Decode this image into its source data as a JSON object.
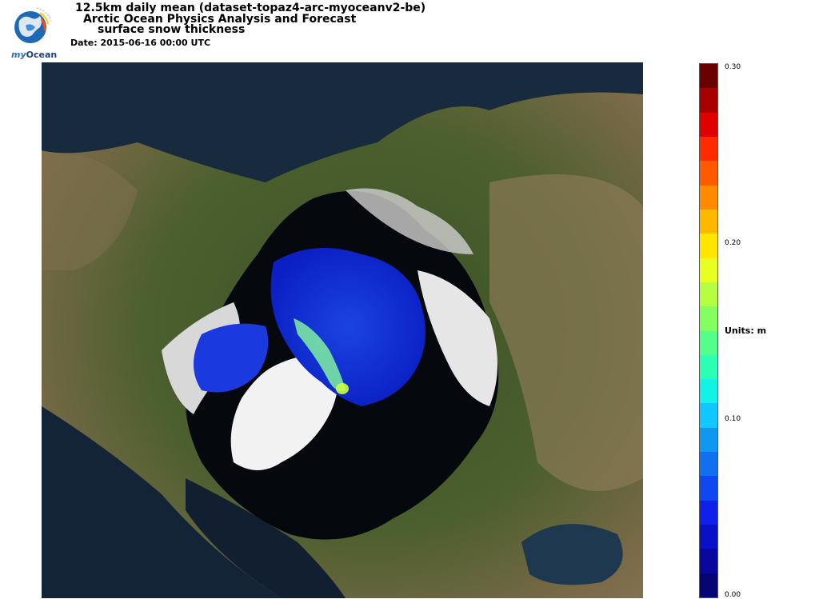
{
  "header": {
    "title_line1": "12.5km daily mean (dataset-topaz4-arc-myoceanv2-be)",
    "title_line2": "Arctic Ocean Physics Analysis and Forecast",
    "title_line3": "surface snow thickness",
    "date": "Date: 2015-06-16 00:00 UTC"
  },
  "logo": {
    "prefix": "my",
    "name": "Ocean"
  },
  "map": {
    "view": "north polar projection",
    "data_variable": "surface snow thickness"
  },
  "legend": {
    "units_label": "Units: m",
    "tick_labels": [
      "0.30",
      "0.20",
      "0.10",
      "0.00"
    ],
    "colors": [
      "#6b0000",
      "#a80000",
      "#e00000",
      "#ff2a00",
      "#ff5a00",
      "#ff8a00",
      "#ffb800",
      "#ffe600",
      "#e8ff20",
      "#b6ff40",
      "#84ff60",
      "#52ff8a",
      "#2affb4",
      "#12f2e6",
      "#10c8ff",
      "#1098f0",
      "#1070f0",
      "#0f48f0",
      "#0f20e8",
      "#0a10c8",
      "#08089e",
      "#050574"
    ]
  },
  "chart_data": {
    "type": "heatmap",
    "colorbar_min": 0.0,
    "colorbar_max": 0.3,
    "colorbar_ticks": [
      0.0,
      0.1,
      0.2,
      0.3
    ],
    "units": "m"
  }
}
